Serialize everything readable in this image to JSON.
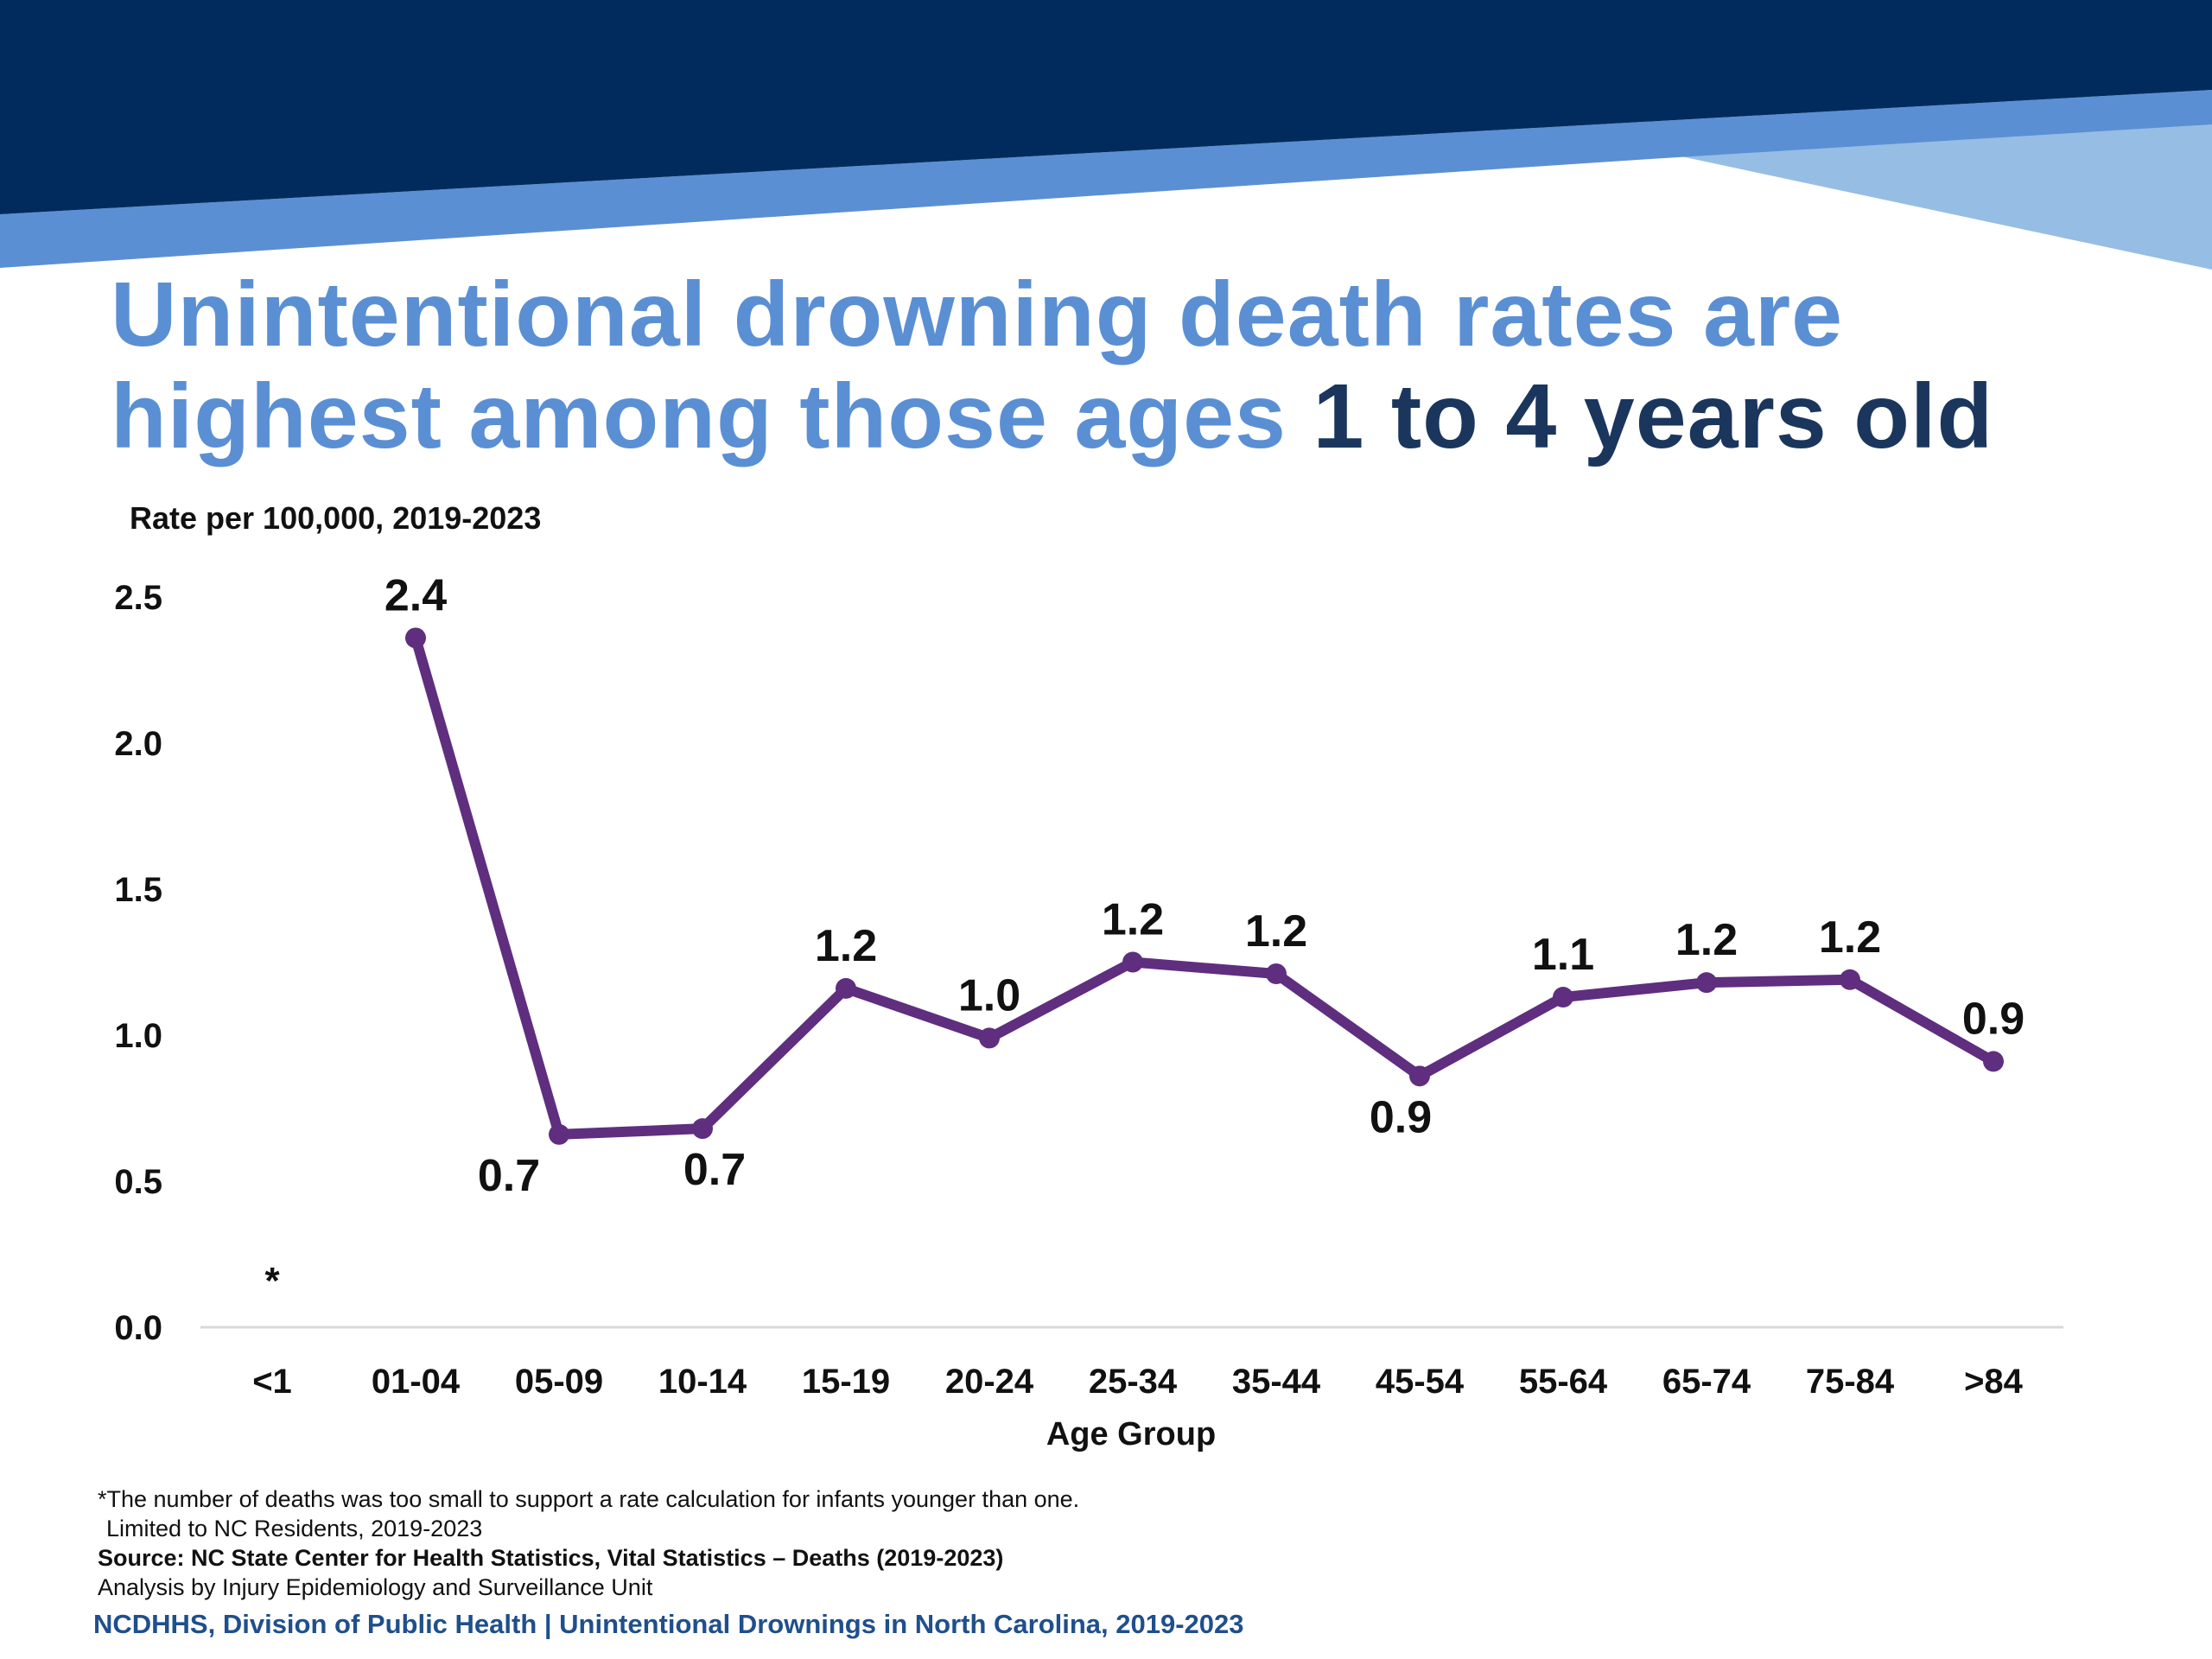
{
  "header": {
    "title_part1": "Unintentional drowning death rates are",
    "title_part2": "highest among those ages ",
    "title_highlight": "1 to 4 years old",
    "colors": {
      "navy": "#002b5c",
      "blue": "#5b8fd4",
      "light_blue": "#96bde4",
      "title_dark": "#1b365d"
    }
  },
  "chart_data": {
    "type": "line",
    "ylabel_top": "Rate per 100,000, 2019-2023",
    "xlabel": "Age Group",
    "categories": [
      "<1",
      "01-04",
      "05-09",
      "10-14",
      "15-19",
      "20-24",
      "25-34",
      "35-44",
      "45-54",
      "55-64",
      "65-74",
      "75-84",
      ">84"
    ],
    "series": [
      {
        "values": [
          null,
          2.36,
          0.66,
          0.68,
          1.16,
          0.99,
          1.25,
          1.21,
          0.86,
          1.13,
          1.18,
          1.19,
          0.91
        ],
        "labels": [
          "*",
          "2.4",
          "0.7",
          "0.7",
          "1.2",
          "1.0",
          "1.2",
          "1.2",
          "0.9",
          "1.1",
          "1.2",
          "1.2",
          "0.9"
        ],
        "label_positions": [
          "above",
          "above",
          "below",
          "below",
          "above",
          "above",
          "above",
          "above",
          "below",
          "above",
          "above",
          "above",
          "above"
        ],
        "color": "#5f2e7f"
      }
    ],
    "yticks": [
      "0.0",
      "0.5",
      "1.0",
      "1.5",
      "2.0",
      "2.5"
    ],
    "ylim": [
      0,
      2.5
    ],
    "grid": false,
    "legend": "none"
  },
  "footer": {
    "note1": "*The number of deaths was too small to support a rate calculation for infants younger than one.",
    "note2": "Limited to NC Residents, 2019-2023",
    "source": "Source: NC State Center for Health Statistics, Vital Statistics – Deaths (2019-2023)",
    "analysis": "Analysis by Injury Epidemiology and Surveillance Unit",
    "brand": "NCDHHS, Division of Public Health | Unintentional Drownings in North Carolina, 2019-2023"
  }
}
